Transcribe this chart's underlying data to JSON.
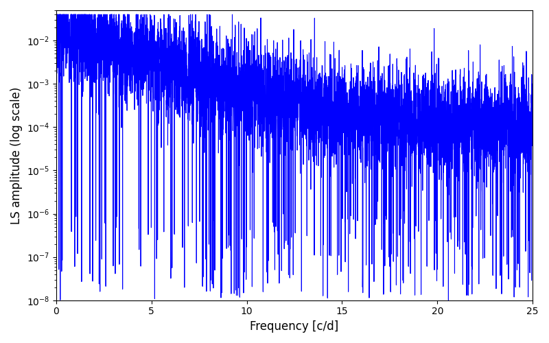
{
  "xlabel": "Frequency [c/d]",
  "ylabel": "LS amplitude (log scale)",
  "xlim": [
    0,
    25
  ],
  "ylim": [
    1e-08,
    0.05
  ],
  "line_color": "#0000FF",
  "line_width": 0.8,
  "figsize": [
    8.0,
    5.0
  ],
  "dpi": 100,
  "freq_min": 0.0,
  "freq_max": 25.0,
  "n_points": 5000,
  "seed": 7
}
